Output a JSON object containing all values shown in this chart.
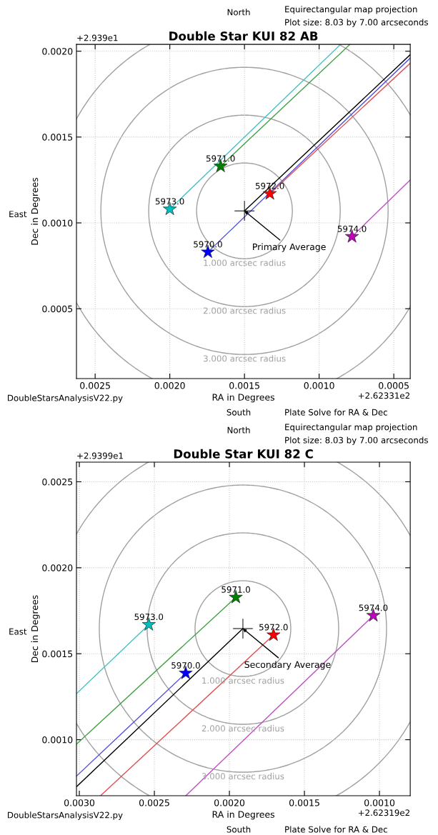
{
  "chart_data": [
    {
      "type": "scatter",
      "title": "Double Star KUI 82 AB",
      "xlabel": "RA in Degrees",
      "ylabel": "Dec in Degrees",
      "grid": true,
      "legend": false,
      "xlim": [
        0.002625,
        0.00039
      ],
      "xticks": [
        {
          "value": 0.0025,
          "label": "0.0025"
        },
        {
          "value": 0.002,
          "label": "0.0020"
        },
        {
          "value": 0.0015,
          "label": "0.0015"
        },
        {
          "value": 0.001,
          "label": "0.0010"
        },
        {
          "value": 0.0005,
          "label": "0.0005"
        }
      ],
      "ylim": [
        9.3e-05,
        0.00204
      ],
      "yticks": [
        {
          "value": 0.0005,
          "label": "0.0005"
        },
        {
          "value": 0.001,
          "label": "0.0010"
        },
        {
          "value": 0.0015,
          "label": "0.0015"
        },
        {
          "value": 0.002,
          "label": "0.0020"
        }
      ],
      "annotations": [
        "North",
        "Equirectangular map projection",
        "Plot size: 8.03 by 7.00 arcseconds",
        "+2.939e1",
        "+2.62331e2",
        "East",
        "DoubleStarsAnalysisV22.py",
        "South",
        "Plate Solve for RA & Dec",
        "1.000 arcsec radius",
        "2.000 arcsec radius",
        "3.000 arcsec radius",
        {
          "text": "Primary Average",
          "x": 0.0015,
          "y": 0.00107
        }
      ],
      "series": [
        {
          "type": "line",
          "color": "#40c0c0",
          "marker": "none",
          "x": [
            0.002,
            0.000856
          ],
          "values": [
            0.00108,
            0.00204
          ]
        },
        {
          "type": "line",
          "color": "#40a040",
          "marker": "none",
          "x": [
            0.00166,
            0.000793
          ],
          "values": [
            0.00133,
            0.00204
          ]
        },
        {
          "type": "line",
          "color": "#000000",
          "marker": "none",
          "x": [
            0.0015,
            0.00039
          ],
          "values": [
            0.00107,
            0.00198
          ]
        },
        {
          "type": "line",
          "color": "#5050e0",
          "marker": "none",
          "x": [
            0.001745,
            0.00039
          ],
          "values": [
            0.00083,
            0.00196
          ]
        },
        {
          "type": "line",
          "color": "#e05050",
          "marker": "none",
          "x": [
            0.00133,
            0.00039
          ],
          "values": [
            0.00117,
            0.00193
          ]
        },
        {
          "type": "line",
          "color": "#c050c0",
          "marker": "none",
          "x": [
            0.00078,
            0.00039
          ],
          "values": [
            0.00092,
            0.00125
          ]
        },
        {
          "type": "scatter",
          "name": "5970.0",
          "color": "#0000ff",
          "marker": "star",
          "x": [
            0.001745
          ],
          "values": [
            0.00083
          ]
        },
        {
          "type": "scatter",
          "name": "5971.0",
          "color": "#008000",
          "marker": "star",
          "x": [
            0.00166
          ],
          "values": [
            0.00133
          ]
        },
        {
          "type": "scatter",
          "name": "5972.0",
          "color": "#ff0000",
          "marker": "star",
          "x": [
            0.00133
          ],
          "values": [
            0.00117
          ]
        },
        {
          "type": "scatter",
          "name": "5973.0",
          "color": "#00bfbf",
          "marker": "star",
          "x": [
            0.002
          ],
          "values": [
            0.00108
          ]
        },
        {
          "type": "scatter",
          "name": "5974.0",
          "color": "#bf00bf",
          "marker": "star",
          "x": [
            0.00078
          ],
          "values": [
            0.00092
          ]
        },
        {
          "color": "#000000",
          "marker": "cross",
          "x": [
            0.0015
          ],
          "values": [
            0.00107
          ]
        }
      ]
    },
    {
      "type": "scatter",
      "title": "Double Star KUI 82 C",
      "xlabel": "RA in Degrees",
      "ylabel": "Dec in Degrees",
      "grid": true,
      "legend": false,
      "xlim": [
        0.003019,
        0.000795
      ],
      "xticks": [
        {
          "value": 0.003,
          "label": "0.0030"
        },
        {
          "value": 0.0025,
          "label": "0.0025"
        },
        {
          "value": 0.002,
          "label": "0.0020"
        },
        {
          "value": 0.0015,
          "label": "0.0015"
        },
        {
          "value": 0.001,
          "label": "0.0010"
        }
      ],
      "ylim": [
        0.000674,
        0.002614
      ],
      "yticks": [
        {
          "value": 0.001,
          "label": "0.0010"
        },
        {
          "value": 0.0015,
          "label": "0.0015"
        },
        {
          "value": 0.002,
          "label": "0.0020"
        },
        {
          "value": 0.0025,
          "label": "0.0025"
        }
      ],
      "annotations": [
        "North",
        "Equirectangular map projection",
        "Plot size: 8.03 by 7.00 arcseconds",
        "+2.9399e1",
        "+2.62319e2",
        "East",
        "DoubleStarsAnalysisV22.py",
        "South",
        "Plate Solve for RA & Dec",
        "1.000 arcsec radius",
        "2.000 arcsec radius",
        "3.000 arcsec radius",
        {
          "text": "Secondary Average",
          "x": 0.00191,
          "y": 0.001646
        }
      ],
      "series": [
        {
          "type": "line",
          "color": "#40c0c0",
          "marker": "none",
          "x": [
            0.002537,
            0.003019
          ],
          "values": [
            0.001669,
            0.001268
          ]
        },
        {
          "type": "line",
          "color": "#40a040",
          "marker": "none",
          "x": [
            0.001957,
            0.003019
          ],
          "values": [
            0.001828,
            0.000974
          ]
        },
        {
          "type": "line",
          "color": "#5050e0",
          "marker": "none",
          "x": [
            0.002291,
            0.003019
          ],
          "values": [
            0.001387,
            0.000788
          ]
        },
        {
          "type": "line",
          "color": "#000000",
          "marker": "none",
          "x": [
            0.00191,
            0.003019
          ],
          "values": [
            0.001646,
            0.000726
          ]
        },
        {
          "type": "line",
          "color": "#e05050",
          "marker": "none",
          "x": [
            0.001706,
            0.002859
          ],
          "values": [
            0.001609,
            0.000674
          ]
        },
        {
          "type": "line",
          "color": "#c050c0",
          "marker": "none",
          "x": [
            0.001041,
            0.002291
          ],
          "values": [
            0.001722,
            0.000674
          ]
        },
        {
          "type": "scatter",
          "name": "5970.0",
          "color": "#0000ff",
          "marker": "star",
          "x": [
            0.002291
          ],
          "values": [
            0.001387
          ]
        },
        {
          "type": "scatter",
          "name": "5971.0",
          "color": "#008000",
          "marker": "star",
          "x": [
            0.001957
          ],
          "values": [
            0.001828
          ]
        },
        {
          "type": "scatter",
          "name": "5972.0",
          "color": "#ff0000",
          "marker": "star",
          "x": [
            0.001706
          ],
          "values": [
            0.001609
          ]
        },
        {
          "type": "scatter",
          "name": "5973.0",
          "color": "#00bfbf",
          "marker": "star",
          "x": [
            0.002537
          ],
          "values": [
            0.001669
          ]
        },
        {
          "type": "scatter",
          "name": "5974.0",
          "color": "#bf00bf",
          "marker": "star",
          "x": [
            0.001041
          ],
          "values": [
            0.001722
          ]
        },
        {
          "color": "#000000",
          "marker": "cross",
          "x": [
            0.00191
          ],
          "values": [
            0.001646
          ]
        }
      ]
    }
  ]
}
